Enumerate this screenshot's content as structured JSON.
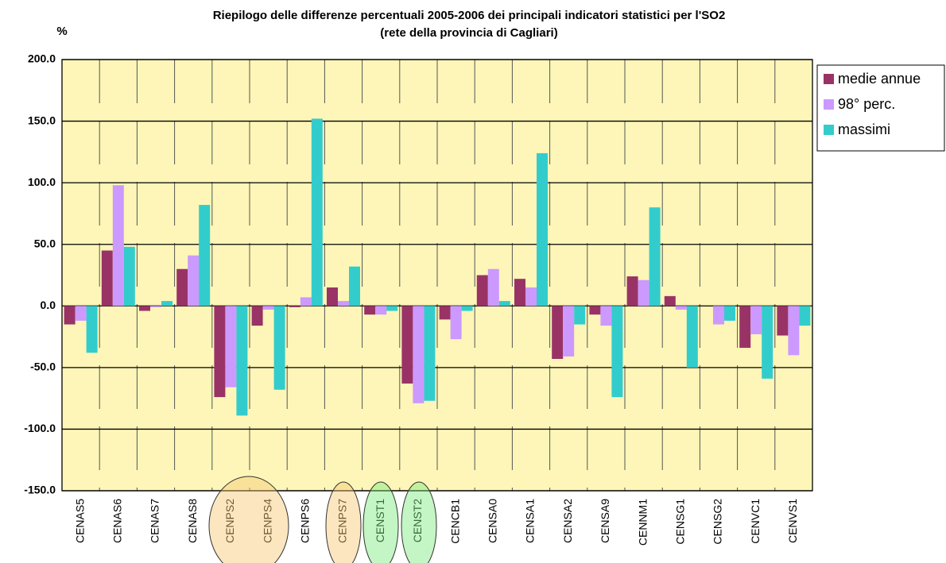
{
  "chart_data": {
    "type": "bar",
    "title": "Riepilogo delle differenze percentuali 2005-2006 dei principali indicatori statistici per l'SO2",
    "subtitle": "(rete della provincia di Cagliari)",
    "y_label": "%",
    "categories": [
      "CENAS5",
      "CENAS6",
      "CENAS7",
      "CENAS8",
      "CENPS2",
      "CENPS4",
      "CENPS6",
      "CENPS7",
      "CENST1",
      "CENST2",
      "CENCB1",
      "CENSA0",
      "CENSA1",
      "CENSA2",
      "CENSA9",
      "CENNM1",
      "CENSG1",
      "CENSG2",
      "CENVC1",
      "CENVS1"
    ],
    "series": [
      {
        "name": "medie annue",
        "color": "#993366",
        "values": [
          -15,
          45,
          -4,
          30,
          -74,
          -16,
          -1,
          15,
          -7,
          -63,
          -11,
          25,
          22,
          -43,
          -7,
          24,
          8,
          0,
          -34,
          -24
        ]
      },
      {
        "name": "98° perc.",
        "color": "#cc99ff",
        "values": [
          -12,
          98,
          -1,
          41,
          -66,
          -3,
          7,
          4,
          -7,
          -79,
          -27,
          30,
          15,
          -41,
          -16,
          21,
          -3,
          -15,
          -23,
          -40
        ]
      },
      {
        "name": "massimi",
        "color": "#33cccc",
        "values": [
          -38,
          48,
          4,
          82,
          -89,
          -68,
          152,
          32,
          -4,
          -77,
          -4,
          4,
          124,
          -15,
          -74,
          80,
          -50,
          -12,
          -59,
          -16
        ]
      }
    ],
    "ylim": [
      -150,
      200
    ],
    "yticks": [
      {
        "value": -150,
        "label": "-150.0"
      },
      {
        "value": -100,
        "label": "-100.0"
      },
      {
        "value": -50,
        "label": "-50.0"
      },
      {
        "value": 0,
        "label": "0.0"
      },
      {
        "value": 50,
        "label": "50.0"
      },
      {
        "value": 100,
        "label": "100.0"
      },
      {
        "value": 150,
        "label": "150.0"
      },
      {
        "value": 200,
        "label": "200.0"
      }
    ],
    "grid": true,
    "legend": "right"
  }
}
